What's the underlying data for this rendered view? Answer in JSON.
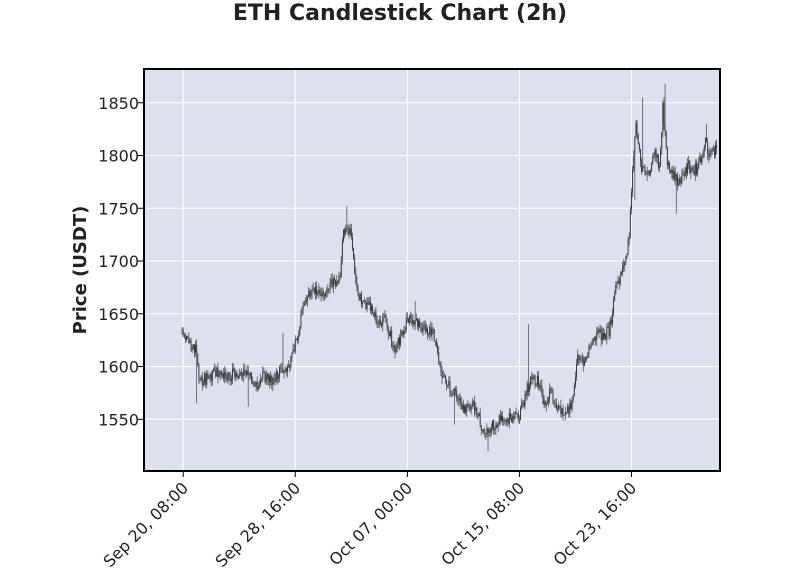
{
  "chart_data": {
    "type": "candlestick",
    "title": "ETH Candlestick Chart (2h)",
    "xlabel": "",
    "ylabel": "Price (USDT)",
    "interval": "2h",
    "x_range": [
      "2023-09-17T10:00",
      "2023-10-30T06:00"
    ],
    "ylim": [
      1501,
      1882
    ],
    "y_ticks": [
      1550,
      1600,
      1650,
      1700,
      1750,
      1800,
      1850
    ],
    "x_ticks": [
      {
        "label": "Sep 20, 08:00",
        "t": "2023-09-20T08:00"
      },
      {
        "label": "Sep 28, 16:00",
        "t": "2023-09-28T16:00"
      },
      {
        "label": "Oct 07, 00:00",
        "t": "2023-10-07T00:00"
      },
      {
        "label": "Oct 15, 08:00",
        "t": "2023-10-15T08:00"
      },
      {
        "label": "Oct 23, 16:00",
        "t": "2023-10-23T16:00"
      }
    ],
    "grid": true,
    "colors": {
      "background": "#dde1ef",
      "grid": "#ffffff",
      "candle": "#333333",
      "wick": "#555555",
      "frame": "#000000"
    },
    "series": [
      {
        "start": "2023-09-20T06:00",
        "end": "2023-10-30T00:00",
        "close_path": [
          [
            "2023-09-20T06:00",
            1630
          ],
          [
            "2023-09-20T20:00",
            1622
          ],
          [
            "2023-09-21T06:00",
            1618
          ],
          [
            "2023-09-21T14:00",
            1585
          ],
          [
            "2023-09-22T04:00",
            1590
          ],
          [
            "2023-09-22T22:00",
            1594
          ],
          [
            "2023-09-24T00:00",
            1592
          ],
          [
            "2023-09-25T06:00",
            1593
          ],
          [
            "2023-09-25T20:00",
            1582
          ],
          [
            "2023-09-26T06:00",
            1590
          ],
          [
            "2023-09-27T02:00",
            1588
          ],
          [
            "2023-09-27T14:00",
            1595
          ],
          [
            "2023-09-28T06:00",
            1600
          ],
          [
            "2023-09-28T16:00",
            1620
          ],
          [
            "2023-09-29T04:00",
            1650
          ],
          [
            "2023-09-29T18:00",
            1670
          ],
          [
            "2023-09-30T18:00",
            1670
          ],
          [
            "2023-10-01T12:00",
            1680
          ],
          [
            "2023-10-02T00:00",
            1685
          ],
          [
            "2023-10-02T06:00",
            1730
          ],
          [
            "2023-10-02T20:00",
            1725
          ],
          [
            "2023-10-03T06:00",
            1670
          ],
          [
            "2023-10-03T18:00",
            1660
          ],
          [
            "2023-10-04T06:00",
            1655
          ],
          [
            "2023-10-04T20:00",
            1640
          ],
          [
            "2023-10-05T10:00",
            1645
          ],
          [
            "2023-10-06T00:00",
            1615
          ],
          [
            "2023-10-06T14:00",
            1630
          ],
          [
            "2023-10-07T00:00",
            1645
          ],
          [
            "2023-10-07T16:00",
            1640
          ],
          [
            "2023-10-08T10:00",
            1638
          ],
          [
            "2023-10-09T02:00",
            1628
          ],
          [
            "2023-10-09T12:00",
            1595
          ],
          [
            "2023-10-10T02:00",
            1580
          ],
          [
            "2023-10-10T16:00",
            1570
          ],
          [
            "2023-10-11T06:00",
            1560
          ],
          [
            "2023-10-11T20:00",
            1565
          ],
          [
            "2023-10-12T10:00",
            1548
          ],
          [
            "2023-10-12T18:00",
            1535
          ],
          [
            "2023-10-13T08:00",
            1545
          ],
          [
            "2023-10-14T02:00",
            1550
          ],
          [
            "2023-10-14T18:00",
            1552
          ],
          [
            "2023-10-15T08:00",
            1555
          ],
          [
            "2023-10-15T20:00",
            1575
          ],
          [
            "2023-10-16T06:00",
            1590
          ],
          [
            "2023-10-16T18:00",
            1585
          ],
          [
            "2023-10-17T04:00",
            1565
          ],
          [
            "2023-10-17T16:00",
            1575
          ],
          [
            "2023-10-18T06:00",
            1560
          ],
          [
            "2023-10-18T16:00",
            1555
          ],
          [
            "2023-10-19T06:00",
            1565
          ],
          [
            "2023-10-19T16:00",
            1610
          ],
          [
            "2023-10-20T02:00",
            1605
          ],
          [
            "2023-10-20T14:00",
            1615
          ],
          [
            "2023-10-21T02:00",
            1630
          ],
          [
            "2023-10-22T00:00",
            1632
          ],
          [
            "2023-10-22T12:00",
            1675
          ],
          [
            "2023-10-23T00:00",
            1690
          ],
          [
            "2023-10-23T12:00",
            1720
          ],
          [
            "2023-10-23T18:00",
            1790
          ],
          [
            "2023-10-24T00:00",
            1830
          ],
          [
            "2023-10-24T08:00",
            1790
          ],
          [
            "2023-10-24T20:00",
            1780
          ],
          [
            "2023-10-25T10:00",
            1800
          ],
          [
            "2023-10-25T18:00",
            1790
          ],
          [
            "2023-10-26T00:00",
            1845
          ],
          [
            "2023-10-26T08:00",
            1795
          ],
          [
            "2023-10-26T20:00",
            1780
          ],
          [
            "2023-10-27T06:00",
            1775
          ],
          [
            "2023-10-27T20:00",
            1790
          ],
          [
            "2023-10-28T08:00",
            1785
          ],
          [
            "2023-10-28T20:00",
            1795
          ],
          [
            "2023-10-29T02:00",
            1815
          ],
          [
            "2023-10-29T12:00",
            1800
          ],
          [
            "2023-10-30T00:00",
            1808
          ]
        ],
        "spikes": [
          {
            "t": "2023-09-21T08:00",
            "low": 1565
          },
          {
            "t": "2023-09-25T04:00",
            "low": 1562
          },
          {
            "t": "2023-09-27T18:00",
            "high": 1632
          },
          {
            "t": "2023-10-02T12:00",
            "high": 1752
          },
          {
            "t": "2023-10-07T14:00",
            "high": 1662
          },
          {
            "t": "2023-10-10T12:00",
            "low": 1545
          },
          {
            "t": "2023-10-13T00:00",
            "low": 1520
          },
          {
            "t": "2023-10-16T00:00",
            "high": 1640
          },
          {
            "t": "2023-10-23T22:00",
            "low": 1758
          },
          {
            "t": "2023-10-24T12:00",
            "high": 1855
          },
          {
            "t": "2023-10-26T04:00",
            "high": 1868
          },
          {
            "t": "2023-10-27T00:00",
            "low": 1745
          },
          {
            "t": "2023-10-29T06:00",
            "high": 1830
          }
        ]
      }
    ]
  }
}
